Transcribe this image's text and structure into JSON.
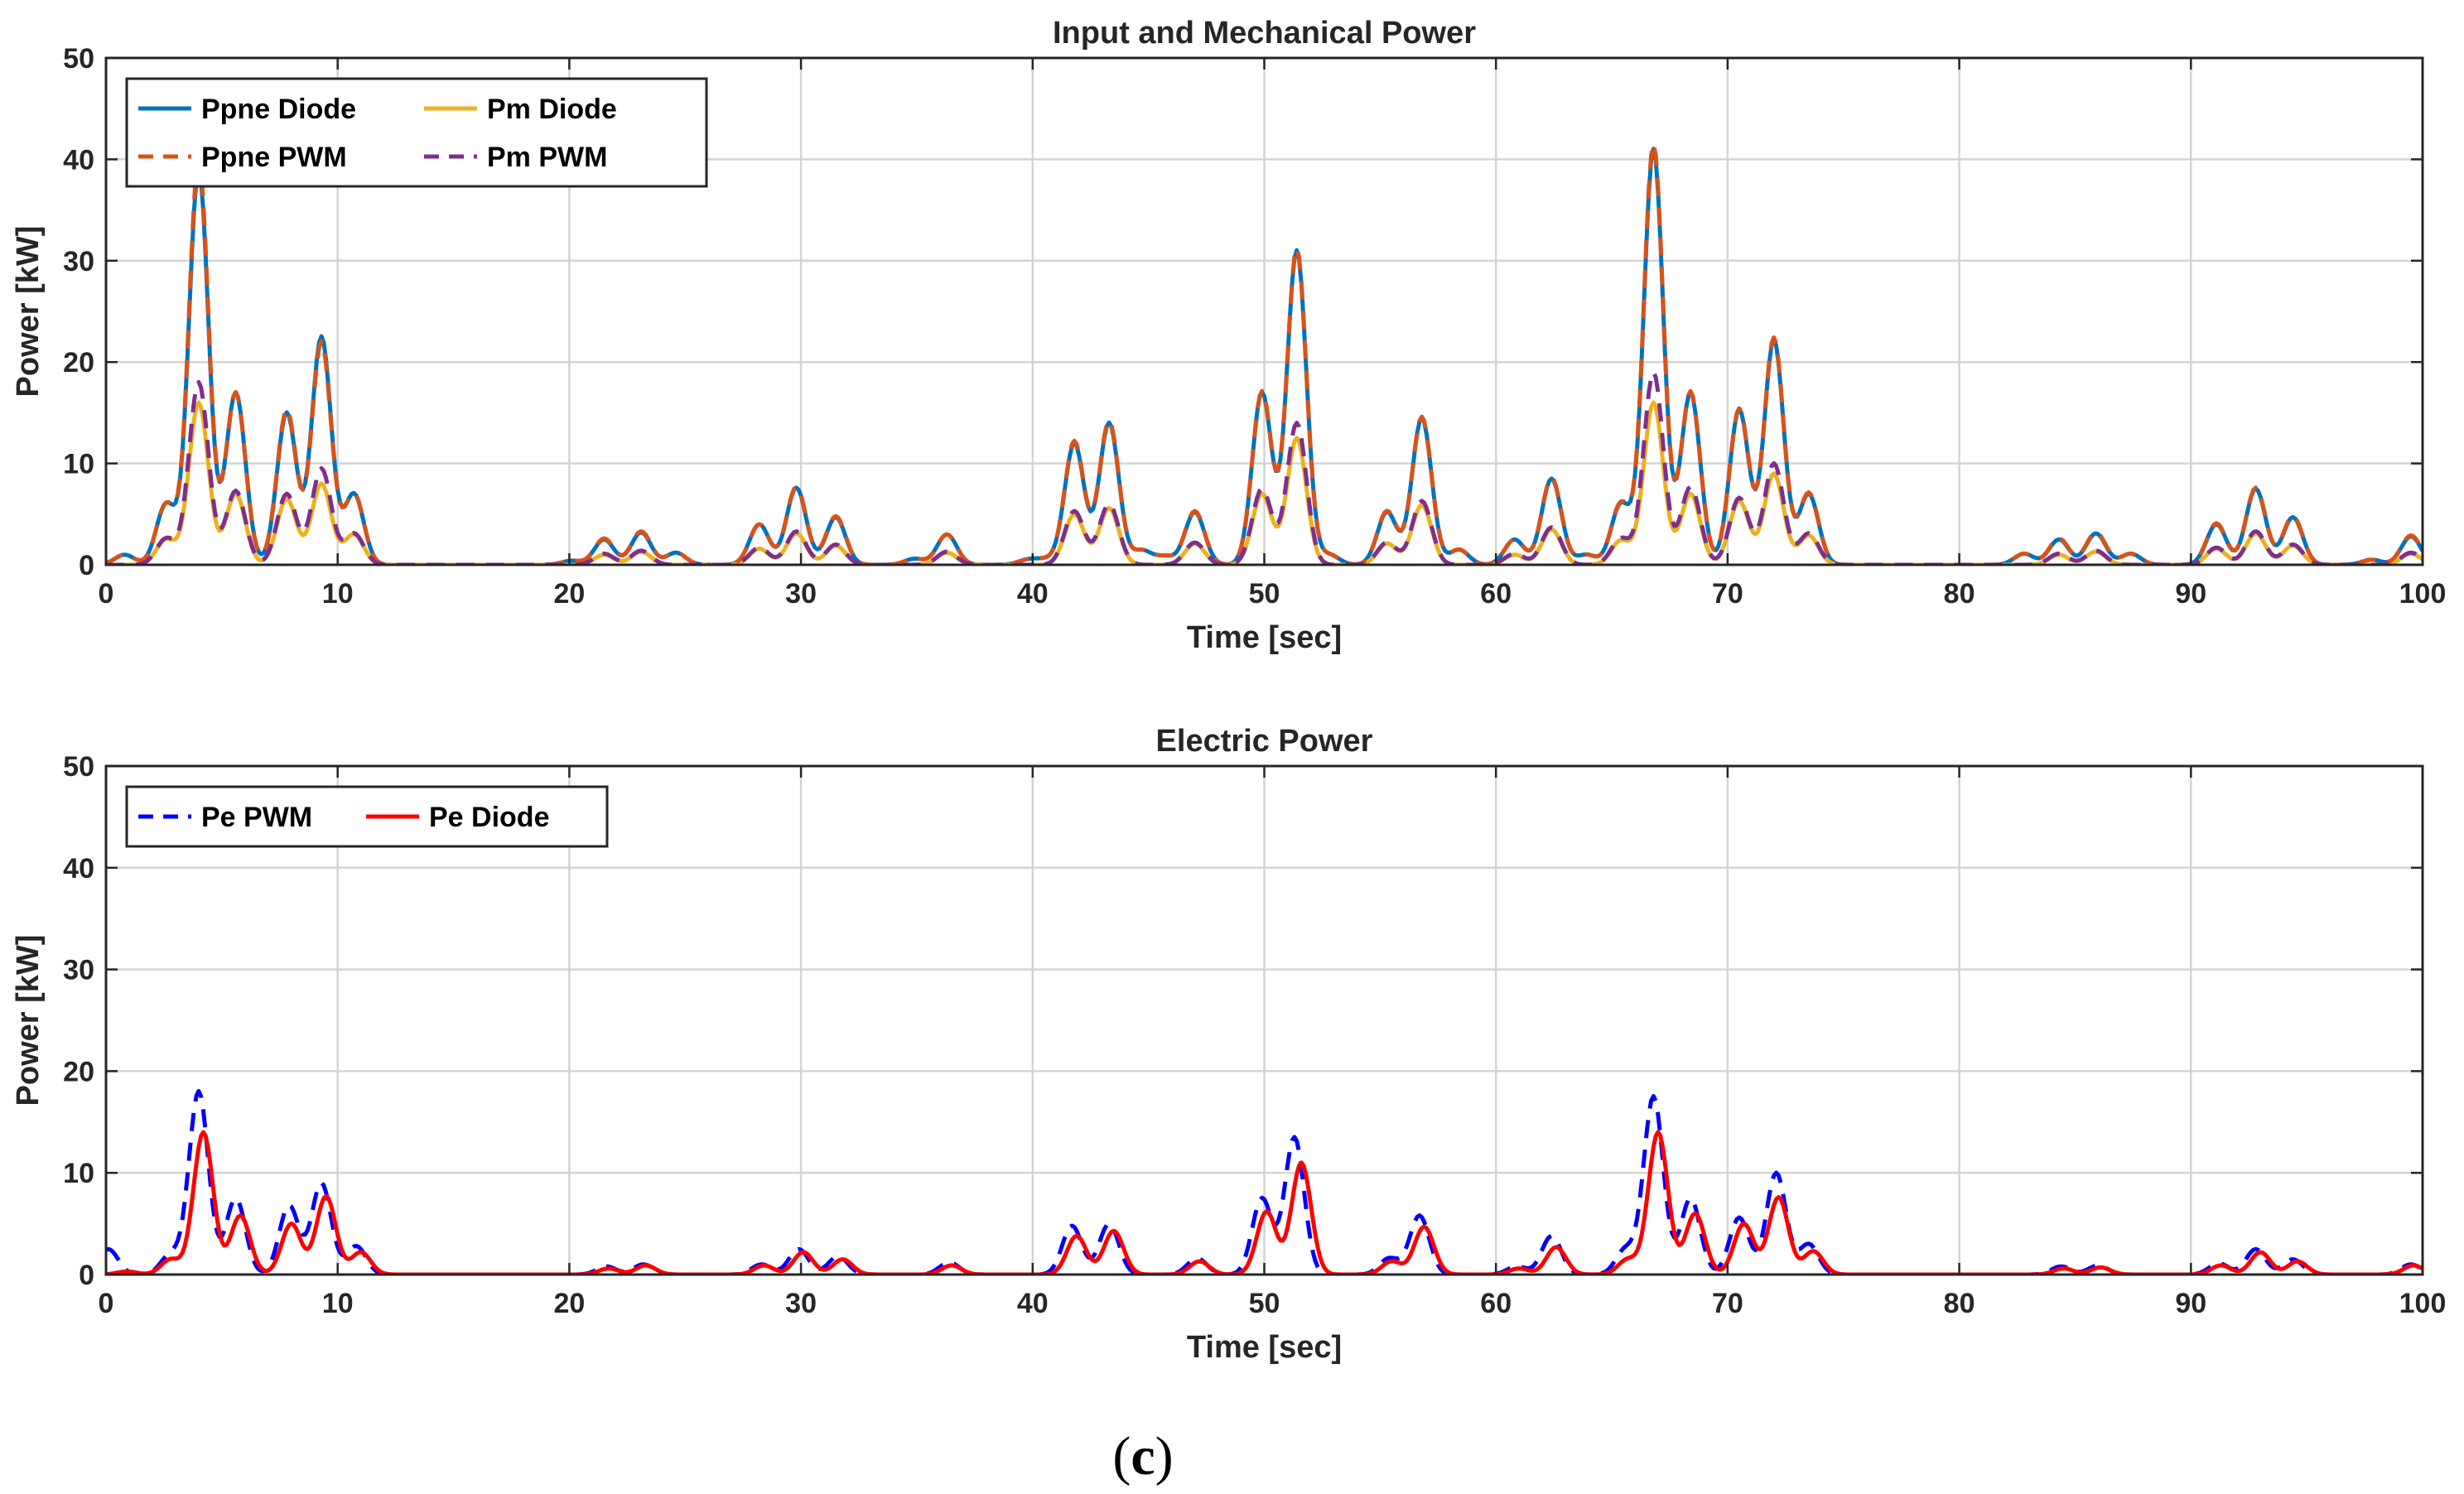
{
  "chart_data": [
    {
      "type": "line",
      "title": "Input and Mechanical Power",
      "xlabel": "Time [sec]",
      "ylabel": "Power [kW]",
      "xlim": [
        0,
        100
      ],
      "ylim": [
        0,
        50
      ],
      "xticks": [
        0,
        10,
        20,
        30,
        40,
        50,
        60,
        70,
        80,
        90,
        100
      ],
      "yticks": [
        0,
        10,
        20,
        30,
        40,
        50
      ],
      "grid": true,
      "legend_position": "top-left",
      "legend_columns": 2,
      "series": [
        {
          "name": "Ppne Diode",
          "color": "#0072BD",
          "style": "solid",
          "peaks": [
            [
              0.8,
              1
            ],
            [
              2.6,
              6
            ],
            [
              4.0,
              39
            ],
            [
              5.6,
              17
            ],
            [
              7.8,
              15
            ],
            [
              9.3,
              22.5
            ],
            [
              10.7,
              7
            ],
            [
              20.1,
              0.4
            ],
            [
              21.5,
              2.5
            ],
            [
              23.1,
              3.2
            ],
            [
              24.6,
              1.2
            ],
            [
              28.2,
              4
            ],
            [
              29.8,
              7.6
            ],
            [
              31.5,
              4.7
            ],
            [
              34.9,
              0.6
            ],
            [
              36.3,
              3
            ],
            [
              39.8,
              0.5
            ],
            [
              40.6,
              0.5
            ],
            [
              41.8,
              12
            ],
            [
              43.3,
              14
            ],
            [
              44.7,
              1.4
            ],
            [
              45.7,
              0.8
            ],
            [
              47.0,
              5.2
            ],
            [
              49.9,
              17
            ],
            [
              51.4,
              31
            ],
            [
              52.8,
              1
            ],
            [
              55.3,
              5.2
            ],
            [
              56.8,
              14.5
            ],
            [
              58.4,
              1.5
            ],
            [
              60.8,
              2.5
            ],
            [
              62.4,
              8.5
            ],
            [
              63.9,
              1
            ],
            [
              65.4,
              6
            ],
            [
              66.8,
              41
            ],
            [
              68.4,
              17
            ],
            [
              70.5,
              15.3
            ],
            [
              72.0,
              22.2
            ],
            [
              73.5,
              7
            ],
            [
              82.8,
              1.1
            ],
            [
              84.3,
              2.5
            ],
            [
              85.9,
              3.1
            ],
            [
              87.4,
              1.1
            ],
            [
              91.1,
              4
            ],
            [
              92.8,
              7.5
            ],
            [
              94.4,
              4.7
            ],
            [
              97.8,
              0.5
            ],
            [
              99.5,
              2.8
            ]
          ]
        },
        {
          "name": "Pm Diode",
          "color": "#EDB120",
          "style": "solid",
          "peaks": [
            [
              2.6,
              2.5
            ],
            [
              4.0,
              16
            ],
            [
              5.6,
              7
            ],
            [
              7.8,
              6.5
            ],
            [
              9.3,
              8
            ],
            [
              10.7,
              3
            ],
            [
              21.5,
              1
            ],
            [
              23.1,
              1.3
            ],
            [
              28.2,
              1.6
            ],
            [
              29.8,
              3.1
            ],
            [
              31.5,
              1.9
            ],
            [
              36.3,
              1.2
            ],
            [
              41.8,
              5
            ],
            [
              43.3,
              5.6
            ],
            [
              47.0,
              2.1
            ],
            [
              49.9,
              7
            ],
            [
              51.4,
              12.5
            ],
            [
              55.3,
              2.1
            ],
            [
              56.8,
              5.9
            ],
            [
              60.8,
              1
            ],
            [
              62.4,
              3.5
            ],
            [
              65.4,
              2.4
            ],
            [
              66.8,
              16
            ],
            [
              68.4,
              7
            ],
            [
              70.5,
              6.3
            ],
            [
              72.0,
              9
            ],
            [
              73.5,
              2.9
            ],
            [
              84.3,
              1
            ],
            [
              85.9,
              1.3
            ],
            [
              91.1,
              1.6
            ],
            [
              92.8,
              3.1
            ],
            [
              94.4,
              1.9
            ],
            [
              99.5,
              1.1
            ]
          ]
        },
        {
          "name": "Ppne PWM",
          "color": "#D95319",
          "style": "dashed",
          "peaks": [
            [
              0.8,
              1
            ],
            [
              2.6,
              6
            ],
            [
              4.0,
              40
            ],
            [
              5.6,
              17
            ],
            [
              7.8,
              15.3
            ],
            [
              9.3,
              22
            ],
            [
              10.7,
              7
            ],
            [
              20.1,
              0.4
            ],
            [
              21.5,
              2.6
            ],
            [
              23.1,
              3.3
            ],
            [
              24.6,
              1.2
            ],
            [
              28.2,
              4
            ],
            [
              29.8,
              7.7
            ],
            [
              31.5,
              4.8
            ],
            [
              34.9,
              0.6
            ],
            [
              36.3,
              3
            ],
            [
              39.8,
              0.5
            ],
            [
              40.6,
              0.5
            ],
            [
              41.8,
              12.2
            ],
            [
              43.3,
              14.2
            ],
            [
              44.7,
              1.4
            ],
            [
              45.7,
              0.8
            ],
            [
              47.0,
              5.3
            ],
            [
              49.9,
              17.1
            ],
            [
              51.4,
              31.2
            ],
            [
              52.8,
              1
            ],
            [
              55.3,
              5.3
            ],
            [
              56.8,
              14.6
            ],
            [
              58.4,
              1.5
            ],
            [
              60.8,
              2.5
            ],
            [
              62.4,
              8.6
            ],
            [
              63.9,
              1
            ],
            [
              65.4,
              6.1
            ],
            [
              66.8,
              41.5
            ],
            [
              68.4,
              17.1
            ],
            [
              70.5,
              15.4
            ],
            [
              72.0,
              22.4
            ],
            [
              73.5,
              7.1
            ],
            [
              82.8,
              1.1
            ],
            [
              84.3,
              2.6
            ],
            [
              85.9,
              3.2
            ],
            [
              87.4,
              1.1
            ],
            [
              91.1,
              4.1
            ],
            [
              92.8,
              7.6
            ],
            [
              94.4,
              4.8
            ],
            [
              97.8,
              0.5
            ],
            [
              99.5,
              2.9
            ]
          ]
        },
        {
          "name": "Pm PWM",
          "color": "#7E2F8E",
          "style": "dashed",
          "peaks": [
            [
              2.6,
              2.6
            ],
            [
              4.0,
              18
            ],
            [
              5.6,
              7.3
            ],
            [
              7.8,
              7
            ],
            [
              9.3,
              9.5
            ],
            [
              10.7,
              3.1
            ],
            [
              21.5,
              1.1
            ],
            [
              23.1,
              1.4
            ],
            [
              28.2,
              1.7
            ],
            [
              29.8,
              3.3
            ],
            [
              31.5,
              2
            ],
            [
              36.3,
              1.3
            ],
            [
              41.8,
              5.3
            ],
            [
              43.3,
              6
            ],
            [
              47.0,
              2.2
            ],
            [
              49.9,
              7.5
            ],
            [
              51.4,
              14
            ],
            [
              55.3,
              2.2
            ],
            [
              56.8,
              6.3
            ],
            [
              60.8,
              1.1
            ],
            [
              62.4,
              3.7
            ],
            [
              65.4,
              2.6
            ],
            [
              66.8,
              19
            ],
            [
              68.4,
              7.7
            ],
            [
              70.5,
              6.6
            ],
            [
              72.0,
              10
            ],
            [
              73.5,
              3.1
            ],
            [
              84.3,
              1.1
            ],
            [
              85.9,
              1.4
            ],
            [
              91.1,
              1.7
            ],
            [
              92.8,
              3.3
            ],
            [
              94.4,
              2
            ],
            [
              99.5,
              1.2
            ]
          ]
        }
      ]
    },
    {
      "type": "line",
      "title": "Electric Power",
      "xlabel": "Time [sec]",
      "ylabel": "Power [kW]",
      "xlim": [
        0,
        100
      ],
      "ylim": [
        0,
        50
      ],
      "xticks": [
        0,
        10,
        20,
        30,
        40,
        50,
        60,
        70,
        80,
        90,
        100
      ],
      "yticks": [
        0,
        10,
        20,
        30,
        40,
        50
      ],
      "grid": true,
      "legend_position": "top-left",
      "legend_columns": 2,
      "series": [
        {
          "name": "Pe PWM",
          "color": "#0000FF",
          "style": "dashed",
          "peaks": [
            [
              0.1,
              2.5
            ],
            [
              2.8,
              2
            ],
            [
              4.0,
              18
            ],
            [
              5.6,
              7.5
            ],
            [
              7.9,
              6.8
            ],
            [
              9.3,
              9
            ],
            [
              10.8,
              2.8
            ],
            [
              21.6,
              0.8
            ],
            [
              23.2,
              1
            ],
            [
              28.3,
              1
            ],
            [
              29.9,
              2.5
            ],
            [
              31.6,
              1.8
            ],
            [
              36.4,
              1.2
            ],
            [
              41.7,
              4.8
            ],
            [
              43.3,
              5
            ],
            [
              47.1,
              1.6
            ],
            [
              49.9,
              7.5
            ],
            [
              51.3,
              13.5
            ],
            [
              55.4,
              1.6
            ],
            [
              56.7,
              5.8
            ],
            [
              60.9,
              0.8
            ],
            [
              62.4,
              3.8
            ],
            [
              65.6,
              2.5
            ],
            [
              66.8,
              17.5
            ],
            [
              68.4,
              7.5
            ],
            [
              70.5,
              5.6
            ],
            [
              72.1,
              10
            ],
            [
              73.5,
              3
            ],
            [
              84.4,
              0.8
            ],
            [
              86.0,
              0.9
            ],
            [
              91.2,
              1.1
            ],
            [
              92.8,
              2.5
            ],
            [
              94.4,
              1.5
            ],
            [
              99.5,
              1
            ]
          ]
        },
        {
          "name": "Pe Diode",
          "color": "#FF0000",
          "style": "solid",
          "peaks": [
            [
              0.9,
              0.3
            ],
            [
              2.8,
              1.5
            ],
            [
              4.2,
              14
            ],
            [
              5.8,
              5.8
            ],
            [
              8.0,
              5
            ],
            [
              9.5,
              7.7
            ],
            [
              11.0,
              2.2
            ],
            [
              21.7,
              0.6
            ],
            [
              23.3,
              0.9
            ],
            [
              28.4,
              0.9
            ],
            [
              30.1,
              2.2
            ],
            [
              31.8,
              1.5
            ],
            [
              36.5,
              0.9
            ],
            [
              41.9,
              3.8
            ],
            [
              43.5,
              4.3
            ],
            [
              47.2,
              1.3
            ],
            [
              50.1,
              6.2
            ],
            [
              51.6,
              11
            ],
            [
              55.5,
              1.3
            ],
            [
              56.9,
              4.7
            ],
            [
              61.0,
              0.6
            ],
            [
              62.6,
              2.7
            ],
            [
              65.7,
              1.5
            ],
            [
              67.0,
              14
            ],
            [
              68.6,
              6
            ],
            [
              70.7,
              5
            ],
            [
              72.2,
              7.6
            ],
            [
              73.7,
              2.3
            ],
            [
              84.5,
              0.6
            ],
            [
              86.1,
              0.7
            ],
            [
              91.3,
              0.9
            ],
            [
              93.0,
              2.2
            ],
            [
              94.6,
              1.3
            ],
            [
              99.6,
              0.9
            ]
          ]
        }
      ]
    }
  ],
  "caption": {
    "open": "(",
    "letter": "c",
    "close": ")"
  }
}
